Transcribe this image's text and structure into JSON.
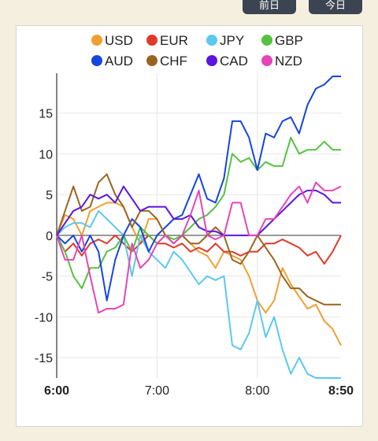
{
  "buttons": [
    {
      "label": "前日"
    },
    {
      "label": "今日"
    }
  ],
  "chart_data": {
    "type": "line",
    "title": "",
    "xlabel": "",
    "ylabel": "",
    "x_ticks": [
      "6:00",
      "7:00",
      "8:00",
      "8:50"
    ],
    "x_range": [
      0,
      170
    ],
    "ylim": [
      -17.5,
      19.5
    ],
    "y_ticks": [
      15,
      10,
      5,
      0,
      -5,
      -10,
      -15
    ],
    "grid": true,
    "legend_position": "top",
    "x": [
      0,
      5,
      10,
      15,
      20,
      25,
      30,
      35,
      40,
      45,
      50,
      55,
      60,
      65,
      70,
      75,
      80,
      85,
      90,
      95,
      100,
      105,
      110,
      115,
      120,
      125,
      130,
      135,
      140,
      145,
      150,
      155,
      160,
      165,
      170
    ],
    "series": [
      {
        "name": "USD",
        "color": "#f0a030",
        "values": [
          0,
          2.5,
          2,
          0,
          3,
          3.5,
          4,
          4,
          3.5,
          1,
          -1,
          2,
          2,
          0,
          -1,
          0,
          -1,
          -2,
          -2.5,
          -4,
          -2,
          -2.5,
          -3,
          -5,
          -8,
          -9.5,
          -8,
          -4,
          -6,
          -7.5,
          -9,
          -8.5,
          -10.5,
          -11.5,
          -13.5
        ]
      },
      {
        "name": "EUR",
        "color": "#e03a2a",
        "values": [
          0,
          -2,
          -1,
          -2.5,
          -1,
          -0.5,
          -1,
          0,
          -1,
          -2,
          -1,
          0,
          -1,
          -1,
          -1.5,
          -1,
          -2,
          -1.5,
          -2,
          -1,
          -2,
          -2,
          -2.5,
          -2,
          -2,
          -1,
          -1,
          -0.5,
          -1,
          -1.5,
          -2.5,
          -2,
          -3.5,
          -2,
          0
        ]
      },
      {
        "name": "JPY",
        "color": "#5bc8f0",
        "values": [
          0,
          1,
          1.5,
          1.5,
          1,
          3,
          2,
          1,
          0,
          -5,
          0,
          -2,
          -3,
          -4,
          -2,
          -3,
          -4.5,
          -6,
          -5,
          -5.5,
          -5,
          -13.5,
          -14,
          -12,
          -8,
          -12.5,
          -10,
          -14,
          -17,
          -15,
          -17,
          -17.5,
          -17.5,
          -17.5,
          -17.5
        ]
      },
      {
        "name": "GBP",
        "color": "#55c23e",
        "values": [
          0,
          -2,
          -5,
          -6.5,
          -4,
          -4,
          -2,
          -1.5,
          0,
          -2,
          1,
          0,
          -1,
          0,
          -0.5,
          0,
          1,
          2,
          2.5,
          3.5,
          5,
          10,
          9,
          9.5,
          8,
          9,
          8.5,
          8.5,
          12,
          10,
          10.5,
          10.5,
          11.5,
          10.5,
          10.5
        ]
      },
      {
        "name": "AUD",
        "color": "#1545e0",
        "values": [
          0,
          -1,
          0,
          -2,
          0,
          -2,
          -8,
          -3,
          0,
          2,
          1,
          -2,
          0,
          1,
          2,
          2.5,
          5,
          7.5,
          4.5,
          4,
          7,
          14,
          14,
          12,
          8,
          12.5,
          12,
          14,
          14.5,
          12.5,
          16,
          18,
          18.5,
          19.5,
          19.5
        ]
      },
      {
        "name": "CHF",
        "color": "#9a6420",
        "values": [
          0,
          3,
          6,
          3,
          3.5,
          6.5,
          7.5,
          5,
          3.5,
          1,
          3,
          3,
          2,
          0,
          -1,
          0,
          -1,
          -1,
          0,
          1,
          0,
          -3,
          -3.5,
          -2,
          0,
          -1.5,
          -3,
          -5,
          -6.5,
          -6.5,
          -7.5,
          -8,
          -8.5,
          -8.5,
          -8.5
        ]
      },
      {
        "name": "CAD",
        "color": "#5a16e0",
        "values": [
          0,
          1.5,
          3,
          3.5,
          5,
          4.5,
          5,
          4,
          6,
          4.5,
          3,
          3.5,
          3.5,
          3.5,
          2,
          2,
          2.5,
          1,
          0.5,
          0.5,
          0,
          0,
          0,
          0,
          0,
          1,
          2,
          3,
          4,
          5,
          5.5,
          5.5,
          5,
          4,
          4
        ]
      },
      {
        "name": "NZD",
        "color": "#e645b8",
        "values": [
          0,
          -3,
          -3,
          0,
          -5,
          -9.5,
          -9,
          -9,
          -8.5,
          -1,
          -4,
          -3,
          -1,
          0,
          -1,
          0,
          2.5,
          5.5,
          0,
          -0.5,
          0,
          4,
          4,
          0,
          0,
          2,
          2,
          3.5,
          5,
          6,
          4,
          6.5,
          5.5,
          5.5,
          6
        ]
      }
    ]
  }
}
